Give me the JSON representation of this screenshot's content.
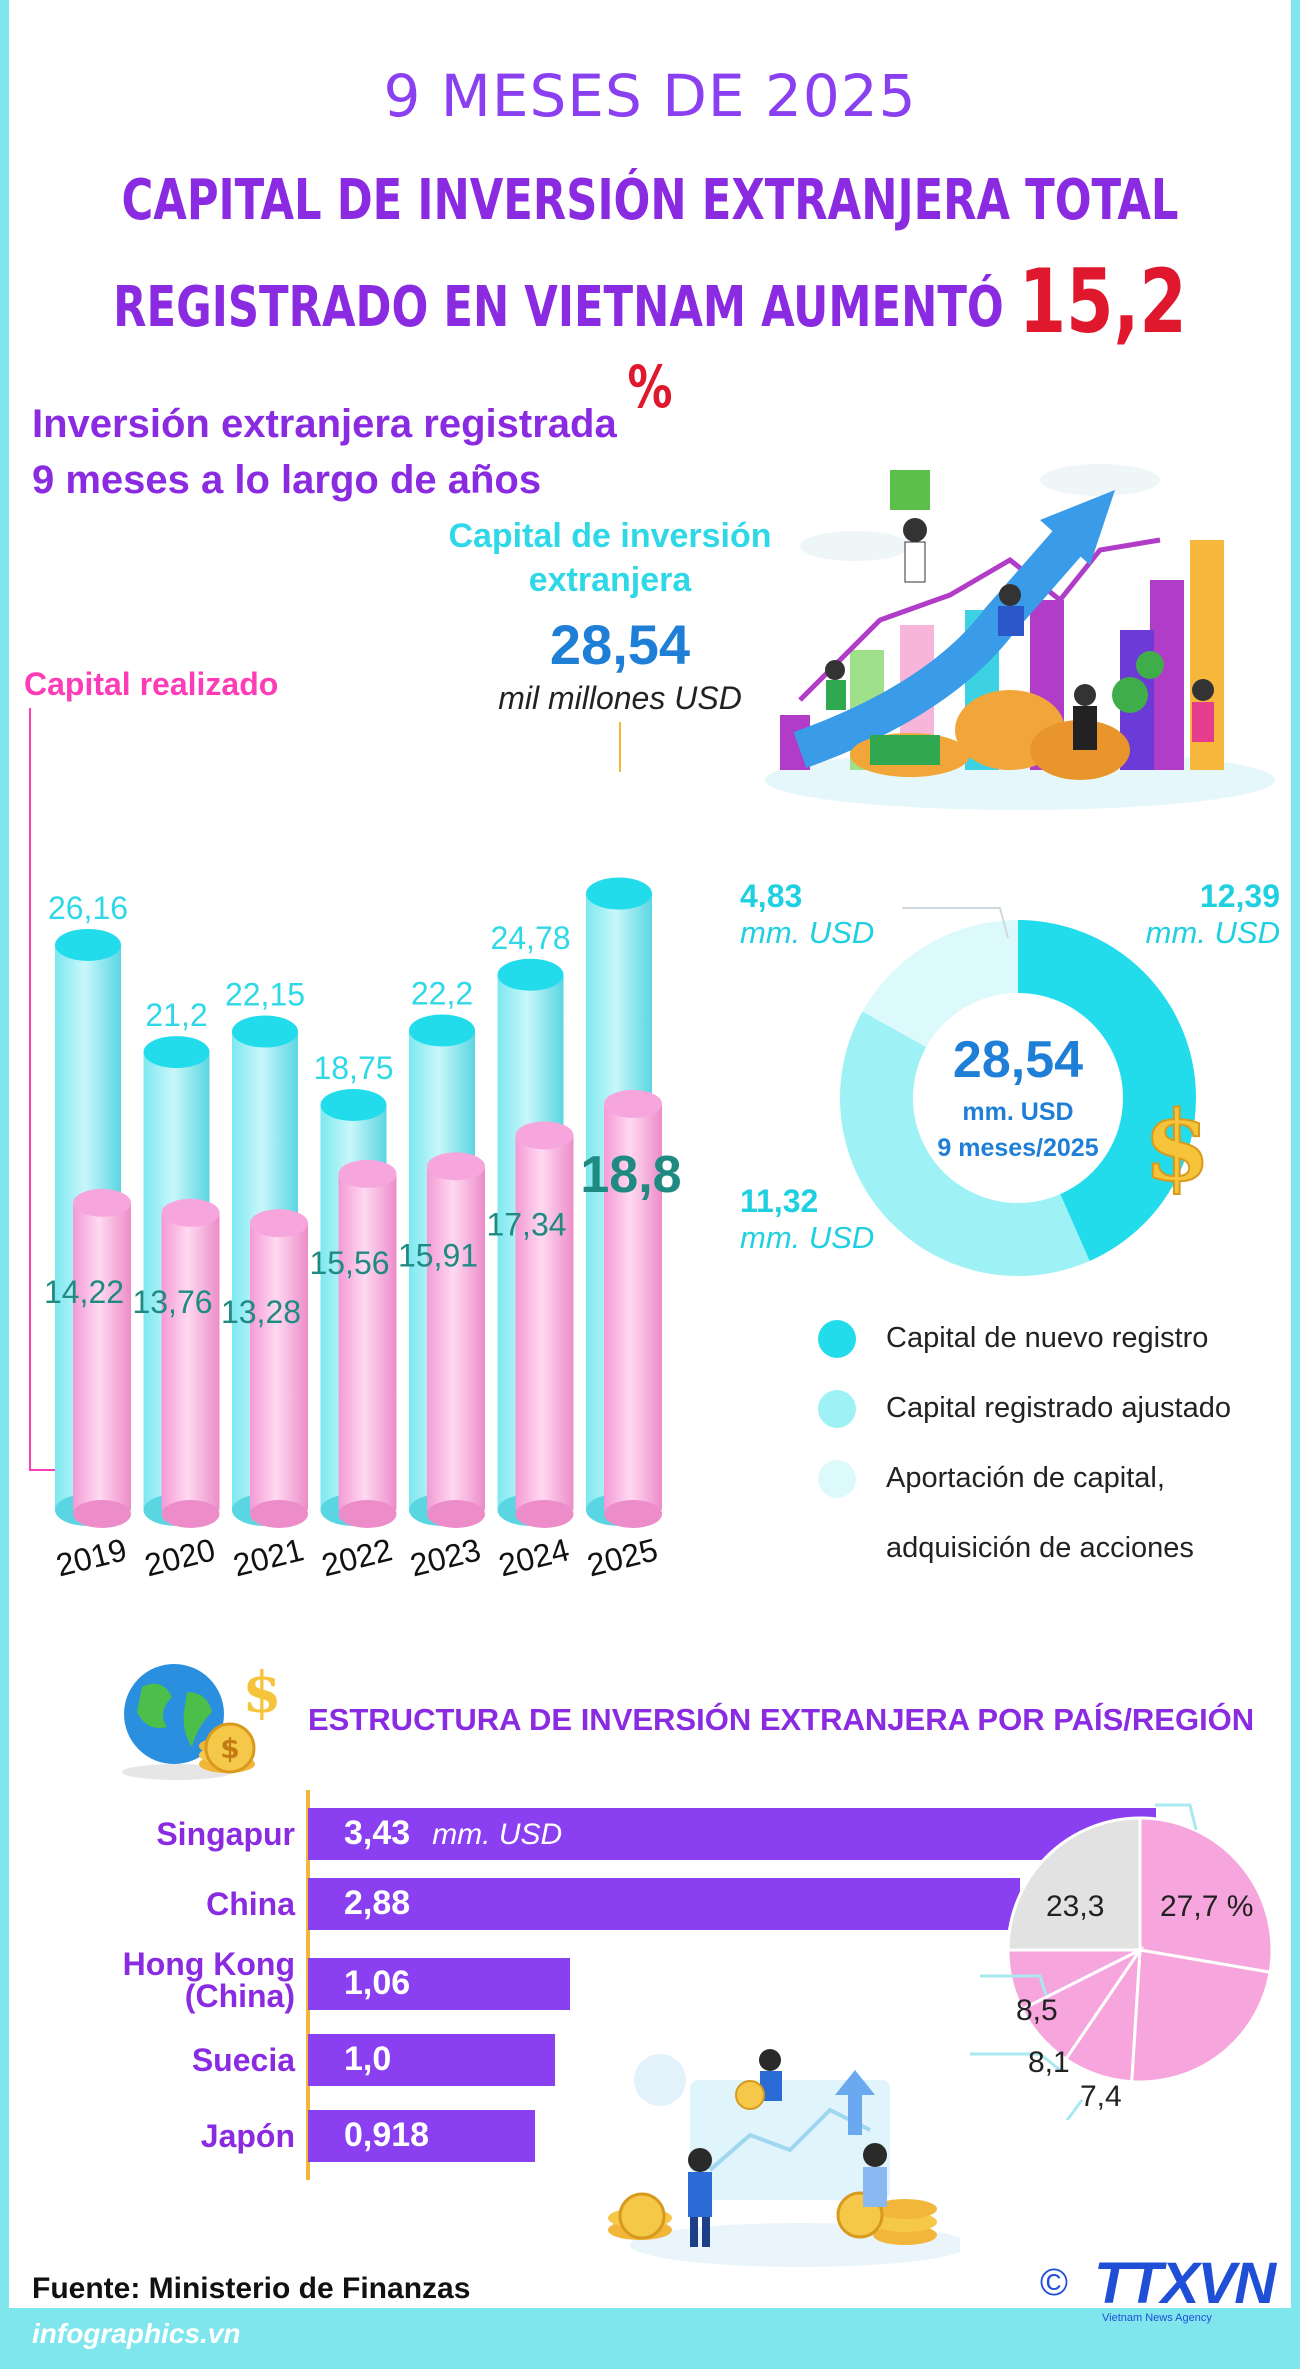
{
  "header": {
    "period": "9 MESES DE 2025",
    "title_line1": "CAPITAL DE INVERSIÓN EXTRANJERA TOTAL",
    "title_line2": "REGISTRADO EN VIETNAM AUMENTÓ",
    "highlight": "15,2",
    "percent": "%"
  },
  "section1": {
    "subtitle_line1": "Inversión extranjera registrada",
    "subtitle_line2": "9 meses a lo largo de años",
    "foreign_label_line1": "Capital de inversión",
    "foreign_label_line2": "extranjera",
    "total_value": "28,54",
    "total_unit": "mil millones USD",
    "realized_label": "Capital realizado"
  },
  "donut": {
    "center_value": "28,54",
    "center_unit": "mm. USD",
    "center_period": "9 meses/2025",
    "labels": [
      {
        "value": "12,39",
        "unit": "mm. USD"
      },
      {
        "value": "11,32",
        "unit": "mm. USD"
      },
      {
        "value": "4,83",
        "unit": "mm. USD"
      }
    ],
    "legend": [
      "Capital de nuevo registro",
      "Capital registrado ajustado",
      "Aportación de capital,",
      "adquisición de acciones"
    ],
    "colors": [
      "#22dcec",
      "#9ef2f6",
      "#dcfafc"
    ]
  },
  "section2": {
    "title": "ESTRUCTURA DE INVERSIÓN EXTRANJERA POR PAÍS/REGIÓN",
    "countries": [
      {
        "name": "Singapur",
        "value": "3,43",
        "unit": "mm. USD"
      },
      {
        "name": "China",
        "value": "2,88",
        "unit": ""
      },
      {
        "name": "Hong Kong",
        "name2": "(China)",
        "value": "1,06",
        "unit": ""
      },
      {
        "name": "Suecia",
        "value": "1,0",
        "unit": ""
      },
      {
        "name": "Japón",
        "value": "0,918",
        "unit": ""
      }
    ],
    "pie_labels": [
      "27,7 %",
      "23,3",
      "8,5",
      "8,1",
      "7,4"
    ]
  },
  "footer": {
    "source": "Fuente: Ministerio de Finanzas",
    "site": "infographics.vn",
    "logo": "TTXVN",
    "logo_sub": "Vietnam News Agency",
    "copyright": "©"
  },
  "chart_data": [
    {
      "type": "bar",
      "categories": [
        "2019",
        "2020",
        "2021",
        "2022",
        "2023",
        "2024",
        "2025"
      ],
      "series": [
        {
          "name": "Capital de inversión extranjera",
          "values": [
            26.16,
            21.2,
            22.15,
            18.75,
            22.2,
            24.78,
            28.54
          ],
          "labels": [
            "26,16",
            "21,2",
            "22,15",
            "18,75",
            "22,2",
            "24,78",
            ""
          ]
        },
        {
          "name": "Capital realizado",
          "values": [
            14.22,
            13.76,
            13.28,
            15.56,
            15.91,
            17.34,
            18.8
          ],
          "labels": [
            "14,22",
            "13,76",
            "13,28",
            "15,56",
            "15,91",
            "17,34",
            "18,8"
          ]
        }
      ],
      "colors": [
        "#5ee3ee",
        "#f6a6dc"
      ]
    },
    {
      "type": "pie",
      "categories": [
        "Capital de nuevo registro",
        "Capital registrado ajustado",
        "Aportación de capital, adquisición de acciones"
      ],
      "values": [
        12.39,
        11.32,
        4.83
      ],
      "colors": [
        "#22dcec",
        "#9ef2f6",
        "#dcfafc"
      ]
    },
    {
      "type": "bar",
      "categories": [
        "Singapur",
        "China",
        "Hong Kong (China)",
        "Suecia",
        "Japón"
      ],
      "values": [
        3.43,
        2.88,
        1.06,
        1.0,
        0.918
      ]
    },
    {
      "type": "pie",
      "values": [
        27.7,
        23.3,
        8.5,
        8.1,
        7.4
      ],
      "colors": [
        "#f6a6dc",
        "#f6a6dc",
        "#f6a6dc",
        "#f6a6dc",
        "#f6a6dc"
      ]
    }
  ]
}
